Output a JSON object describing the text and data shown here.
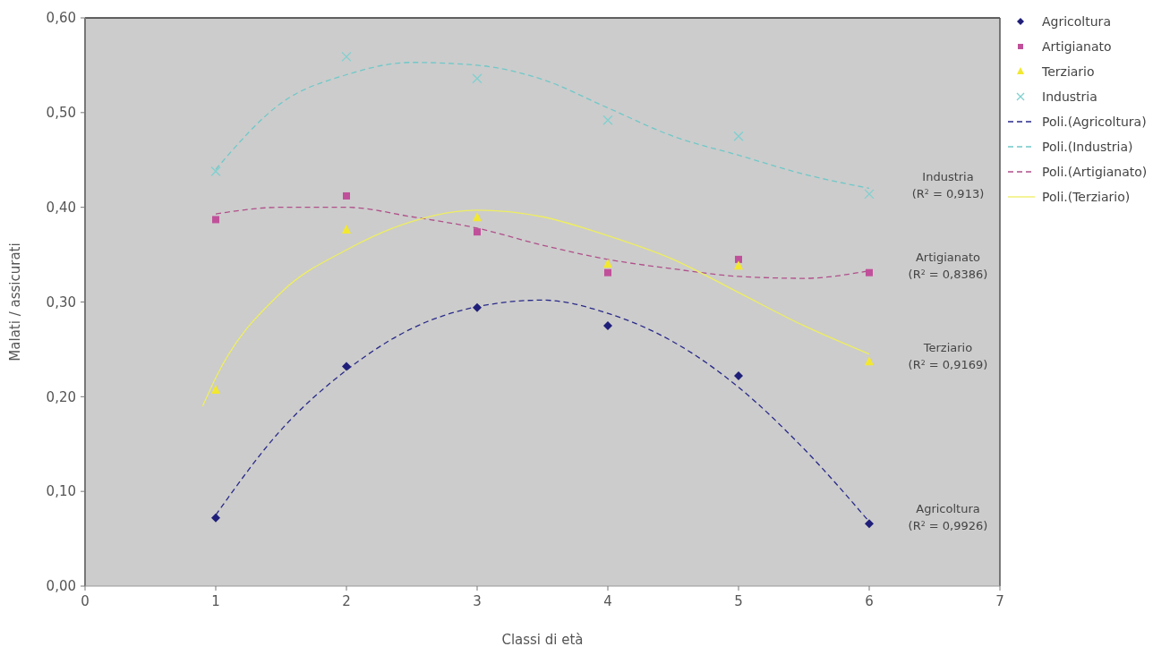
{
  "chart_data": {
    "type": "scatter",
    "xlabel": "Classi di età",
    "ylabel": "Malati / assicurati",
    "xlim": [
      0,
      7
    ],
    "xticks": [
      0,
      1,
      2,
      3,
      4,
      5,
      6,
      7
    ],
    "ylim": [
      0,
      0.6
    ],
    "yticks": [
      {
        "value": 0,
        "label": "0,00"
      },
      {
        "value": 0.1,
        "label": "0,10"
      },
      {
        "value": 0.2,
        "label": "0,20"
      },
      {
        "value": 0.3,
        "label": "0,30"
      },
      {
        "value": 0.4,
        "label": "0,40"
      },
      {
        "value": 0.5,
        "label": "0,50"
      },
      {
        "value": 0.6,
        "label": "0,60"
      }
    ],
    "grid": false,
    "legend": "top right",
    "x": [
      1,
      2,
      3,
      4,
      5,
      6
    ],
    "series": [
      {
        "name": "Agricoltura",
        "marker": "diamond",
        "color": "#1f1f7a",
        "values": [
          0.072,
          0.232,
          0.294,
          0.275,
          0.222,
          0.066
        ]
      },
      {
        "name": "Artigianato",
        "marker": "square",
        "color": "#c0509a",
        "values": [
          0.387,
          0.412,
          0.374,
          0.331,
          0.345,
          0.331
        ]
      },
      {
        "name": "Terziario",
        "marker": "triangle",
        "color": "#f2e830",
        "values": [
          0.207,
          0.376,
          0.389,
          0.34,
          0.338,
          0.237
        ]
      },
      {
        "name": "Industria",
        "marker": "cross",
        "color": "#80d0d0",
        "values": [
          0.438,
          0.559,
          0.536,
          0.492,
          0.475,
          0.414
        ]
      },
      {
        "name": "Poli.(Agricoltura)",
        "type": "line",
        "line_style": "dashed",
        "color": "#2a2a8a",
        "x": [
          1,
          1.5,
          2,
          2.5,
          3,
          3.5,
          4,
          4.5,
          5,
          5.5,
          6
        ],
        "values": [
          0.075,
          0.165,
          0.228,
          0.272,
          0.295,
          0.302,
          0.288,
          0.258,
          0.21,
          0.145,
          0.068
        ]
      },
      {
        "name": "Poli.(Industria)",
        "type": "line",
        "line_style": "dashed",
        "color": "#70c8c8",
        "x": [
          1,
          1.5,
          2,
          2.5,
          3,
          3.5,
          4,
          4.5,
          5,
          5.5,
          6
        ],
        "values": [
          0.44,
          0.51,
          0.54,
          0.553,
          0.55,
          0.535,
          0.505,
          0.475,
          0.455,
          0.435,
          0.42
        ]
      },
      {
        "name": "Poli.(Artigianato)",
        "type": "line",
        "line_style": "dashed",
        "color": "#b0508a",
        "x": [
          1,
          1.5,
          2,
          2.5,
          3,
          3.5,
          4,
          4.5,
          5,
          5.5,
          6
        ],
        "values": [
          0.393,
          0.4,
          0.4,
          0.39,
          0.378,
          0.36,
          0.345,
          0.335,
          0.327,
          0.325,
          0.333
        ]
      },
      {
        "name": "Poli.(Terziario)",
        "type": "line",
        "line_style": "solid",
        "color": "#eeee60",
        "x": [
          0.9,
          1,
          1.5,
          2,
          2.5,
          3,
          3.5,
          4,
          4.5,
          5,
          5.5,
          6
        ],
        "values": [
          0.19,
          0.22,
          0.31,
          0.355,
          0.385,
          0.397,
          0.39,
          0.37,
          0.345,
          0.31,
          0.275,
          0.245
        ]
      }
    ],
    "annotations": [
      "Industria\n(R$^{2}$ = 0,913)",
      "Artigianato\n(R$^{2}$ = 0,8386)",
      "Terziario\n(R$^{2}$ = 0,9169)",
      "Agricoltura\n(R$^{2}$ = 0,9926)"
    ]
  }
}
